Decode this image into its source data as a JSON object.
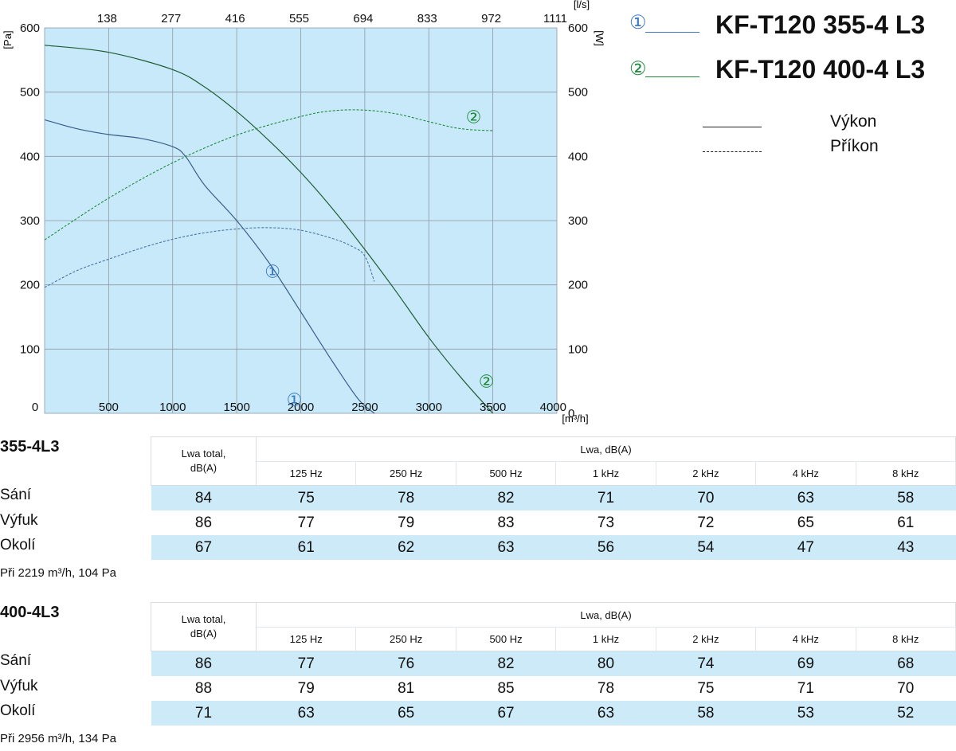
{
  "chart_data": {
    "type": "line",
    "xlabel": "[m³/h]",
    "x2label": "[l/s]",
    "ylabel": "[Pa]",
    "y2label": "[W]",
    "xlim": [
      0,
      4000
    ],
    "ylim": [
      0,
      600
    ],
    "y2lim": [
      0,
      600
    ],
    "x_ticks": [
      "0",
      "500",
      "1000",
      "1500",
      "2000",
      "2500",
      "3000",
      "3500",
      "4000"
    ],
    "x_tick_values": [
      0,
      500,
      1000,
      1500,
      2000,
      2500,
      3000,
      3500,
      4000
    ],
    "x2_ticks": [
      "138",
      "277",
      "416",
      "555",
      "694",
      "833",
      "972",
      "1111"
    ],
    "y_ticks": [
      "100",
      "200",
      "300",
      "400",
      "500",
      "600"
    ],
    "y_tick_values": [
      100,
      200,
      300,
      400,
      500,
      600
    ],
    "y2_ticks": [
      "0",
      "100",
      "200",
      "300",
      "400",
      "500",
      "600"
    ],
    "y2_tick_values": [
      0,
      100,
      200,
      300,
      400,
      500,
      600
    ],
    "grid": true,
    "background": "#c8e9f9",
    "series": [
      {
        "mark": "①",
        "kind": "pressure",
        "color": "#3a5e8c",
        "style": "solid",
        "x": [
          0,
          250,
          500,
          750,
          1000,
          1100,
          1250,
          1500,
          1750,
          2000,
          2250,
          2450,
          2575
        ],
        "y": [
          457,
          443,
          434,
          428,
          415,
          400,
          355,
          300,
          235,
          158,
          80,
          22,
          0
        ]
      },
      {
        "mark": "①",
        "kind": "power",
        "color": "#4a73a8",
        "style": "dashed",
        "x": [
          0,
          250,
          500,
          750,
          1000,
          1250,
          1500,
          1750,
          2000,
          2250,
          2400,
          2500,
          2575
        ],
        "y": [
          196,
          222,
          240,
          257,
          271,
          281,
          287,
          289,
          285,
          272,
          260,
          245,
          205
        ]
      },
      {
        "mark": "②",
        "kind": "pressure",
        "color": "#1f5c34",
        "style": "solid",
        "x": [
          0,
          500,
          1000,
          1250,
          1500,
          1750,
          2000,
          2250,
          2500,
          2750,
          3000,
          3250,
          3500
        ],
        "y": [
          573,
          562,
          535,
          508,
          470,
          425,
          375,
          318,
          255,
          188,
          118,
          56,
          0
        ]
      },
      {
        "mark": "②",
        "kind": "power",
        "color": "#1f8a3c",
        "style": "dashed",
        "x": [
          0,
          500,
          1000,
          1500,
          2000,
          2250,
          2500,
          2750,
          3000,
          3250,
          3500
        ],
        "y": [
          270,
          335,
          390,
          433,
          462,
          471,
          472,
          466,
          454,
          443,
          440
        ]
      }
    ],
    "curve_labels": [
      {
        "text": "①",
        "x": 1780,
        "y": 221,
        "color": "#3b79c4"
      },
      {
        "text": "①",
        "x": 1950,
        "y": 22,
        "color": "#3b79c4"
      },
      {
        "text": "②",
        "x": 3350,
        "y": 462,
        "color": "#1f8a3c"
      },
      {
        "text": "②",
        "x": 3450,
        "y": 50,
        "color": "#1f8a3c"
      }
    ]
  },
  "legend": {
    "models": [
      {
        "mark": "①",
        "name": "KF-T120 355-4 L3",
        "color": "#3b79c4"
      },
      {
        "mark": "②",
        "name": "KF-T120 400-4 L3",
        "color": "#1f8a3c"
      }
    ],
    "line_types": [
      {
        "label": "Výkon",
        "style": "solid"
      },
      {
        "label": "Příkon",
        "style": "dashed"
      }
    ]
  },
  "tables": [
    {
      "title": "355-4L3",
      "total_header": "Lwa total, dB(A)",
      "group_header": "Lwa, dB(A)",
      "bands": [
        "125 Hz",
        "250 Hz",
        "500 Hz",
        "1 kHz",
        "2 kHz",
        "4 kHz",
        "8 kHz"
      ],
      "rows": [
        {
          "label": "Sání",
          "values": [
            "84",
            "75",
            "78",
            "82",
            "71",
            "70",
            "63",
            "58"
          ]
        },
        {
          "label": "Výfuk",
          "values": [
            "86",
            "77",
            "79",
            "83",
            "73",
            "72",
            "65",
            "61"
          ]
        },
        {
          "label": "Okolí",
          "values": [
            "67",
            "61",
            "62",
            "63",
            "56",
            "54",
            "47",
            "43"
          ]
        }
      ],
      "note": "Při 2219 m³/h, 104 Pa"
    },
    {
      "title": "400-4L3",
      "total_header": "Lwa total, dB(A)",
      "group_header": "Lwa, dB(A)",
      "bands": [
        "125 Hz",
        "250 Hz",
        "500 Hz",
        "1 kHz",
        "2 kHz",
        "4 kHz",
        "8 kHz"
      ],
      "rows": [
        {
          "label": "Sání",
          "values": [
            "86",
            "77",
            "76",
            "82",
            "80",
            "74",
            "69",
            "68"
          ]
        },
        {
          "label": "Výfuk",
          "values": [
            "88",
            "79",
            "81",
            "85",
            "78",
            "75",
            "71",
            "70"
          ]
        },
        {
          "label": "Okolí",
          "values": [
            "71",
            "63",
            "65",
            "67",
            "63",
            "58",
            "53",
            "52"
          ]
        }
      ],
      "note": "Při 2956 m³/h, 134 Pa"
    }
  ]
}
